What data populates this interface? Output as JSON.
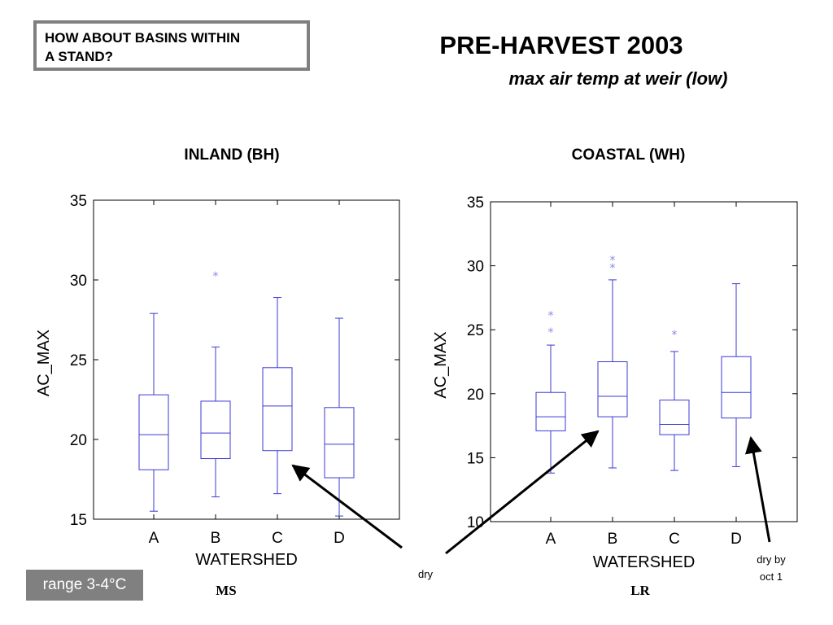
{
  "callout": {
    "line1": "HOW ABOUT BASINS WITHIN",
    "line2": "A STAND?"
  },
  "title": "PRE-HARVEST 2003",
  "subtitle": "max air temp at weir (low)",
  "badge": "range 3-4°C",
  "chart_data": [
    {
      "type": "box",
      "title": "INLAND (BH)",
      "xlabel": "WATERSHED",
      "ylabel": "AC_MAX",
      "footer": "MS",
      "ylim": [
        15,
        35
      ],
      "yticks": [
        15,
        20,
        25,
        30,
        35
      ],
      "categories": [
        "A",
        "B",
        "C",
        "D"
      ],
      "boxes": [
        {
          "category": "A",
          "whisker_low": 15.5,
          "q1": 18.1,
          "median": 20.3,
          "q3": 22.8,
          "whisker_high": 27.9,
          "outliers": []
        },
        {
          "category": "B",
          "whisker_low": 16.4,
          "q1": 18.8,
          "median": 20.4,
          "q3": 22.4,
          "whisker_high": 25.8,
          "outliers": [
            30.3
          ]
        },
        {
          "category": "C",
          "whisker_low": 16.6,
          "q1": 19.3,
          "median": 22.1,
          "q3": 24.5,
          "whisker_high": 28.9,
          "outliers": []
        },
        {
          "category": "D",
          "whisker_low": 15.2,
          "q1": 17.6,
          "median": 19.7,
          "q3": 22.0,
          "whisker_high": 27.6,
          "outliers": []
        }
      ]
    },
    {
      "type": "box",
      "title": "COASTAL (WH)",
      "xlabel": "WATERSHED",
      "ylabel": "AC_MAX",
      "footer": "LR",
      "ylim": [
        10,
        35
      ],
      "yticks": [
        10,
        15,
        20,
        25,
        30,
        35
      ],
      "categories": [
        "A",
        "B",
        "C",
        "D"
      ],
      "boxes": [
        {
          "category": "A",
          "whisker_low": 13.8,
          "q1": 17.1,
          "median": 18.2,
          "q3": 20.1,
          "whisker_high": 23.8,
          "outliers": [
            24.9,
            26.2
          ]
        },
        {
          "category": "B",
          "whisker_low": 14.2,
          "q1": 18.2,
          "median": 19.8,
          "q3": 22.5,
          "whisker_high": 28.9,
          "outliers": [
            29.9,
            30.5
          ]
        },
        {
          "category": "C",
          "whisker_low": 14.0,
          "q1": 16.8,
          "median": 17.6,
          "q3": 19.5,
          "whisker_high": 23.3,
          "outliers": [
            24.7
          ]
        },
        {
          "category": "D",
          "whisker_low": 14.3,
          "q1": 18.1,
          "median": 20.1,
          "q3": 22.9,
          "whisker_high": 28.6,
          "outliers": []
        }
      ]
    }
  ],
  "annotations": [
    {
      "lines": [
        "dry"
      ]
    },
    {
      "lines": [
        "dry by",
        "oct 1"
      ]
    }
  ]
}
